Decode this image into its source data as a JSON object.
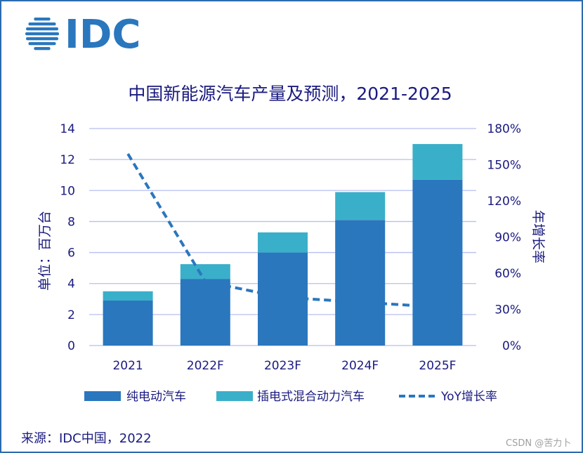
{
  "brand": {
    "name": "IDC",
    "color": "#2a77be"
  },
  "source_text": "来源：IDC中国，2022",
  "watermark": "CSDN @苦力卜",
  "colors": {
    "bev": "#2a77be",
    "phev": "#3aafc9",
    "yoy": "#2a77be",
    "text": "#1a1a80",
    "grid": "#b8bff0"
  },
  "chart_data": {
    "type": "bar",
    "stacked": true,
    "title": "中国新能源汽车产量及预测，2021-2025",
    "categories": [
      "2021",
      "2022F",
      "2023F",
      "2024F",
      "2025F"
    ],
    "series": [
      {
        "name": "纯电动汽车",
        "type": "bar",
        "values": [
          2.9,
          4.3,
          6.0,
          8.1,
          10.7
        ]
      },
      {
        "name": "插电式混合动力汽车",
        "type": "bar",
        "values": [
          0.6,
          0.95,
          1.3,
          1.8,
          2.3
        ]
      },
      {
        "name": "YoY增长率",
        "type": "line",
        "axis": "right",
        "values": [
          159,
          53,
          40,
          36,
          32
        ]
      }
    ],
    "ylabel": "单位：百万台",
    "y2label": "年增长率",
    "ylim": [
      0,
      14
    ],
    "y2lim": [
      0,
      180
    ],
    "yticks": [
      "14",
      "12",
      "10",
      "8",
      "6",
      "4",
      "2",
      "0"
    ],
    "y2ticks": [
      "180%",
      "150%",
      "120%",
      "90%",
      "60%",
      "30%",
      "0%"
    ],
    "legend": [
      "纯电动汽车",
      "插电式混合动力汽车",
      "YoY增长率"
    ]
  }
}
